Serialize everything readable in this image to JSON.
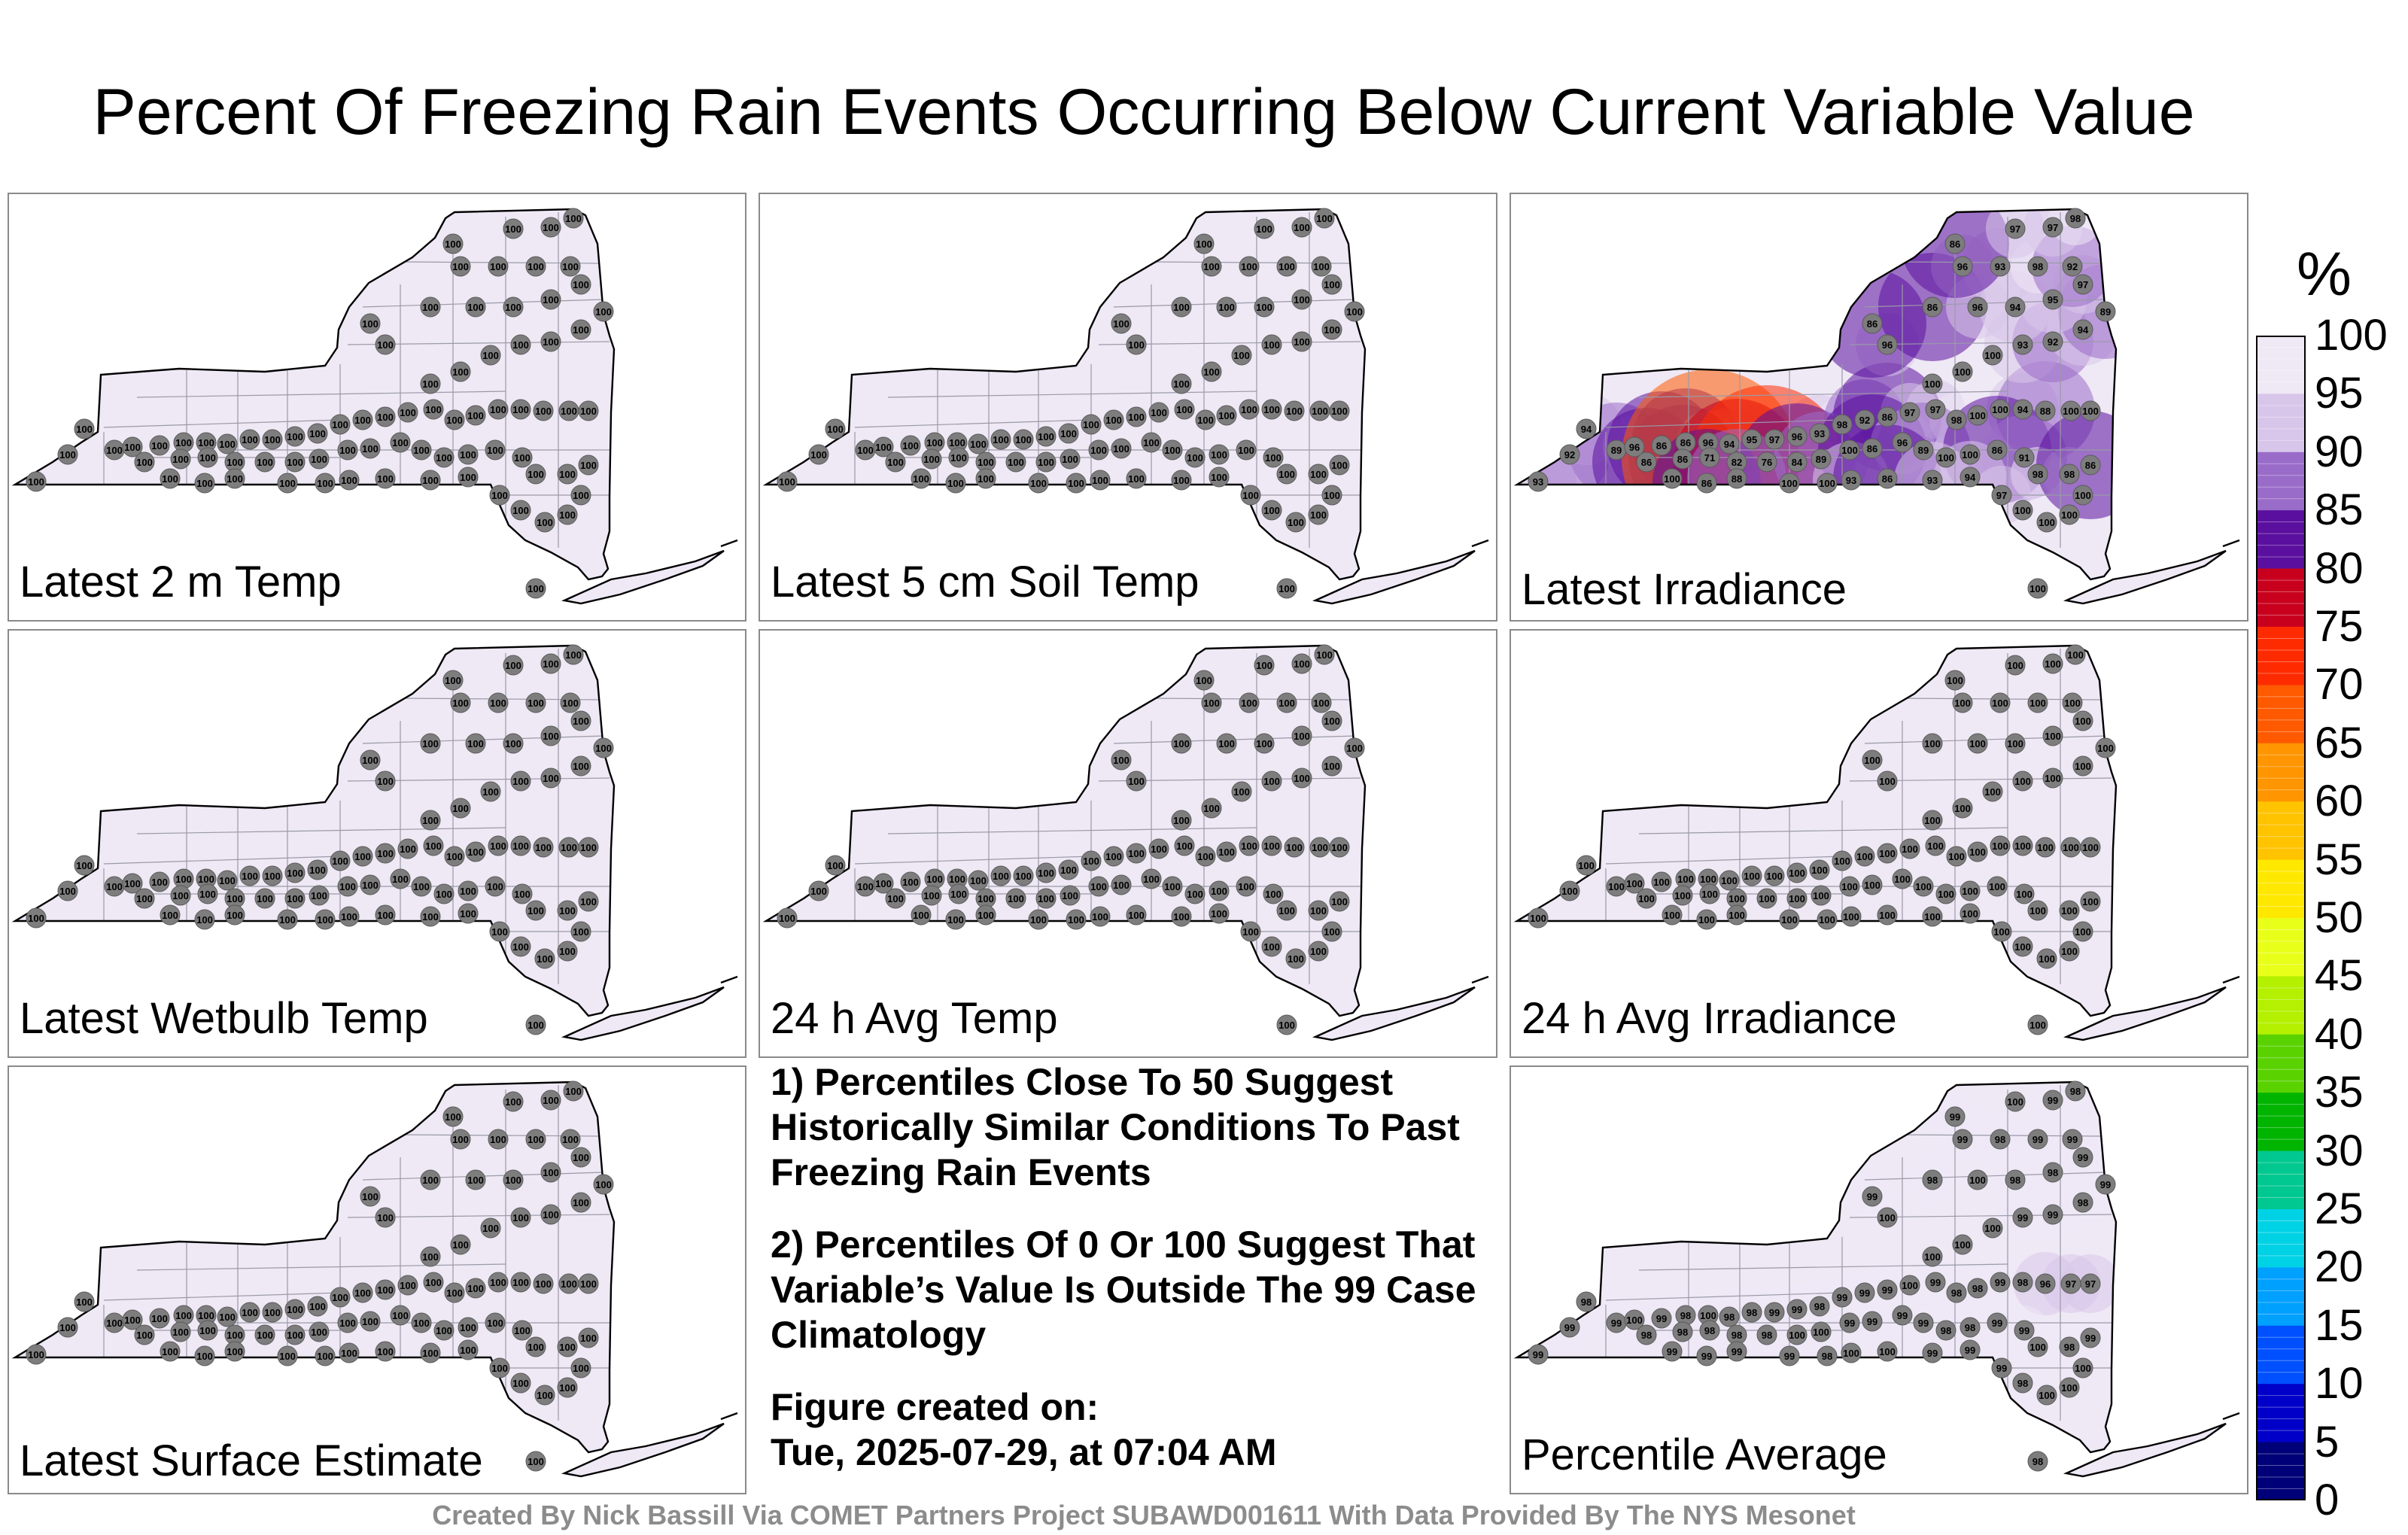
{
  "title": "Percent Of Freezing Rain Events Occurring Below Current Variable Value",
  "panels": [
    {
      "label": "Latest 2 m Temp",
      "colors": "uniform"
    },
    {
      "label": "Latest 5 cm Soil Temp",
      "colors": "uniform"
    },
    {
      "label": "Latest Irradiance",
      "colors": "irradiance"
    },
    {
      "label": "Latest Wetbulb Temp",
      "colors": "uniform"
    },
    {
      "label": "24 h Avg Temp",
      "colors": "uniform"
    },
    {
      "label": "24 h Avg Irradiance",
      "colors": "uniform"
    },
    {
      "label": "Latest Surface Estimate",
      "colors": "uniform"
    },
    {
      "label": "Percentile Average",
      "colors": "average"
    }
  ],
  "station_values": {
    "uniform": [
      100,
      100,
      100,
      100,
      100,
      100,
      100,
      100,
      100,
      100,
      100,
      100,
      100,
      100,
      100,
      100,
      100,
      100,
      100,
      100,
      100,
      100,
      100,
      100,
      100,
      100,
      100,
      100,
      100,
      100,
      100,
      100,
      100,
      100,
      100,
      100,
      100,
      100,
      100,
      100,
      100,
      100,
      100,
      100,
      100,
      100,
      100,
      100,
      100,
      100,
      100,
      100,
      100,
      100,
      100,
      100,
      100,
      100,
      100,
      100,
      100,
      100,
      100,
      100,
      100,
      100,
      100,
      100,
      100,
      100,
      100,
      100,
      100,
      100,
      100,
      100,
      100,
      100,
      100,
      100
    ],
    "irradiance": [
      93,
      92,
      94,
      89,
      96,
      86,
      86,
      96,
      94,
      95,
      97,
      96,
      93,
      98,
      92,
      86,
      97,
      97,
      98,
      100,
      100,
      94,
      88,
      100,
      100,
      86,
      86,
      71,
      82,
      76,
      84,
      89,
      100,
      86,
      96,
      89,
      100,
      100,
      86,
      91,
      98,
      98,
      86,
      100,
      86,
      88,
      100,
      100,
      93,
      86,
      93,
      94,
      97,
      100,
      100,
      100,
      100,
      100,
      100,
      100
    ],
    "average": [
      99,
      99,
      98,
      99,
      100,
      99,
      98,
      100,
      98,
      98,
      99,
      99,
      98,
      99,
      99,
      99,
      100,
      99,
      98,
      98,
      99,
      98,
      96,
      97,
      97,
      98,
      98,
      98,
      98,
      98,
      100,
      100,
      99,
      99,
      99,
      99,
      98,
      98,
      99,
      99,
      100,
      98,
      99,
      99,
      99,
      99,
      99,
      98,
      100,
      100,
      99,
      99,
      99,
      98,
      100,
      100,
      100,
      100,
      100,
      100
    ]
  },
  "notes": [
    "1) Percentiles Close To 50 Suggest Historically Similar Conditions To Past Freezing Rain Events",
    "2) Percentiles Of 0 Or 100 Suggest That Variable’s Value Is Outside The 99 Case Climatology",
    "Figure created on:",
    "Tue, 2025-07-29, at 07:04 AM"
  ],
  "credit": "Created By Nick Bassill Via COMET Partners Project SUBAWD001611 With Data Provided By The NYS Mesonet",
  "colorbar": {
    "unit": "%",
    "ticks": [
      "100",
      "95",
      "90",
      "85",
      "80",
      "75",
      "70",
      "65",
      "60",
      "55",
      "50",
      "45",
      "40",
      "35",
      "30",
      "25",
      "20",
      "15",
      "10",
      "5",
      "0"
    ],
    "colors": [
      "#efe8f5",
      "#d8c6ea",
      "#9a6cc9",
      "#5a0f9e",
      "#c8001e",
      "#ff2b00",
      "#ff5a00",
      "#ff9500",
      "#ffc300",
      "#ffe800",
      "#e8ff1a",
      "#b4f000",
      "#5ad200",
      "#00b400",
      "#00c890",
      "#00d2e6",
      "#00a0ff",
      "#0050ff",
      "#0000c8",
      "#000078",
      "#000000"
    ]
  }
}
